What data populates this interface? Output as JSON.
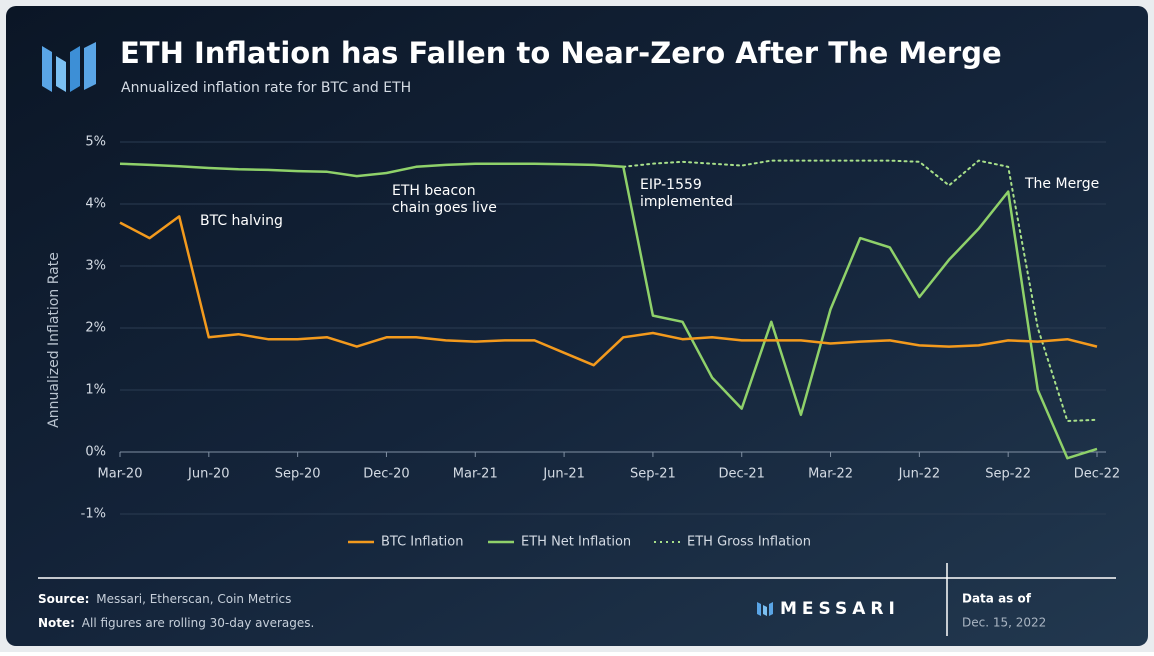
{
  "chart_data": {
    "type": "line",
    "title": "ETH Inflation has Fallen to Near-Zero After The Merge",
    "subtitle": "Annualized inflation rate for BTC and ETH",
    "y_label": "Annualized Inflation Rate",
    "categories": [
      "Mar-20",
      null,
      null,
      "Jun-20",
      null,
      null,
      "Sep-20",
      null,
      null,
      "Dec-20",
      null,
      null,
      "Mar-21",
      null,
      null,
      "Jun-21",
      null,
      null,
      "Sep-21",
      null,
      null,
      "Dec-21",
      null,
      null,
      "Mar-22",
      null,
      null,
      "Jun-22",
      null,
      null,
      "Sep-22",
      null,
      null,
      "Dec-22"
    ],
    "series": [
      {
        "name": "BTC Inflation",
        "color": "#f39a1d",
        "style": "solid",
        "values": [
          3.7,
          3.45,
          3.8,
          1.85,
          1.9,
          1.82,
          1.82,
          1.85,
          1.7,
          1.85,
          1.85,
          1.8,
          1.78,
          1.8,
          1.8,
          1.6,
          1.4,
          1.85,
          1.92,
          1.82,
          1.85,
          1.8,
          1.8,
          1.8,
          1.75,
          1.78,
          1.8,
          1.72,
          1.7,
          1.72,
          1.8,
          1.78,
          1.82,
          1.7
        ]
      },
      {
        "name": "ETH Net Inflation",
        "color": "#8fd16a",
        "style": "solid",
        "values": [
          4.65,
          4.63,
          4.61,
          4.58,
          4.56,
          4.55,
          4.53,
          4.52,
          4.45,
          4.5,
          4.6,
          4.63,
          4.65,
          4.65,
          4.65,
          4.64,
          4.63,
          4.6,
          2.2,
          2.1,
          1.2,
          0.7,
          2.1,
          0.6,
          2.3,
          3.45,
          3.3,
          2.5,
          3.1,
          3.6,
          4.2,
          1.0,
          -0.1,
          0.05
        ]
      },
      {
        "name": "ETH Gross Inflation",
        "color": "#a8e08a",
        "style": "dotted",
        "values": [
          null,
          null,
          null,
          null,
          null,
          null,
          null,
          null,
          null,
          null,
          null,
          null,
          null,
          null,
          null,
          null,
          null,
          4.6,
          4.65,
          4.68,
          4.65,
          4.62,
          4.7,
          4.7,
          4.7,
          4.7,
          4.7,
          4.68,
          4.3,
          4.7,
          4.6,
          2.0,
          0.5,
          0.52
        ]
      }
    ],
    "ylim": [
      -1,
      5
    ],
    "yticks": [
      {
        "value": -1,
        "label": "-1%"
      },
      {
        "value": 0,
        "label": "0%"
      },
      {
        "value": 1,
        "label": "1%"
      },
      {
        "value": 2,
        "label": "2%"
      },
      {
        "value": 3,
        "label": "3%"
      },
      {
        "value": 4,
        "label": "4%"
      },
      {
        "value": 5,
        "label": "5%"
      }
    ],
    "grid": true,
    "legend": "bottom",
    "annotations": [
      {
        "lines": [
          "BTC halving"
        ]
      },
      {
        "lines": [
          "ETH beacon",
          "chain goes live"
        ]
      },
      {
        "lines": [
          "EIP-1559",
          "implemented"
        ]
      },
      {
        "lines": [
          "The Merge"
        ]
      }
    ]
  },
  "footer": {
    "source_label": "Source:",
    "source": "Messari, Etherscan, Coin Metrics",
    "note_label": "Note:",
    "note": "All figures are rolling 30-day averages.",
    "brand": "MESSARI",
    "date_label": "Data as of",
    "date": "Dec. 15, 2022"
  }
}
